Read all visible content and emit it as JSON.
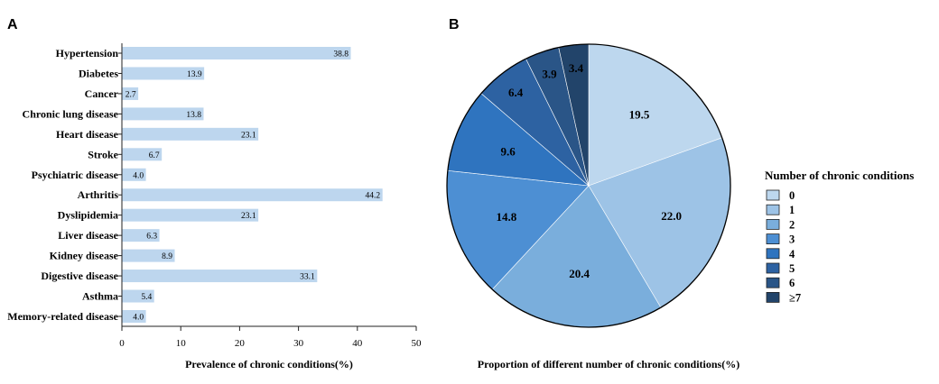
{
  "chart_data": [
    {
      "type": "bar",
      "orientation": "horizontal",
      "panel_label": "A",
      "categories": [
        "Hypertension",
        "Diabetes",
        "Cancer",
        "Chronic lung disease",
        "Heart disease",
        "Stroke",
        "Psychiatric disease",
        "Arthritis",
        "Dyslipidemia",
        "Liver disease",
        "Kidney disease",
        "Digestive disease",
        "Asthma",
        "Memory-related disease"
      ],
      "values": [
        38.8,
        13.9,
        2.7,
        13.8,
        23.1,
        6.7,
        4.0,
        44.2,
        23.1,
        6.3,
        8.9,
        33.1,
        5.4,
        4.0
      ],
      "value_labels": [
        "38.8",
        "13.9",
        "2.7",
        "13.8",
        "23.1",
        "6.7",
        "4.0",
        "44.2",
        "23.1",
        "6.3",
        "8.9",
        "33.1",
        "5.4",
        "4.0"
      ],
      "xlabel": "Prevalence of chronic conditions(%)",
      "xlim": [
        0,
        50
      ],
      "xticks": [
        "0",
        "10",
        "20",
        "30",
        "40",
        "50"
      ],
      "color": "#bdd6ee",
      "grid": false
    },
    {
      "type": "pie",
      "panel_label": "B",
      "categories": [
        "0",
        "1",
        "2",
        "3",
        "4",
        "5",
        "6",
        "≥7"
      ],
      "values": [
        19.5,
        22.0,
        20.4,
        14.8,
        9.6,
        6.4,
        3.9,
        3.4
      ],
      "value_labels": [
        "19.5",
        "22.0",
        "20.4",
        "14.8",
        "9.6",
        "6.4",
        "3.9",
        "3.4"
      ],
      "colors": [
        "#bdd7ee",
        "#9dc3e6",
        "#7aaedc",
        "#4d8fd3",
        "#2f74bf",
        "#2d62a2",
        "#2a5587",
        "#22446a"
      ],
      "xlabel": "Proportion of different number of chronic conditions(%)",
      "legend_title": "Number of chronic conditions",
      "legend_position": "right"
    }
  ]
}
